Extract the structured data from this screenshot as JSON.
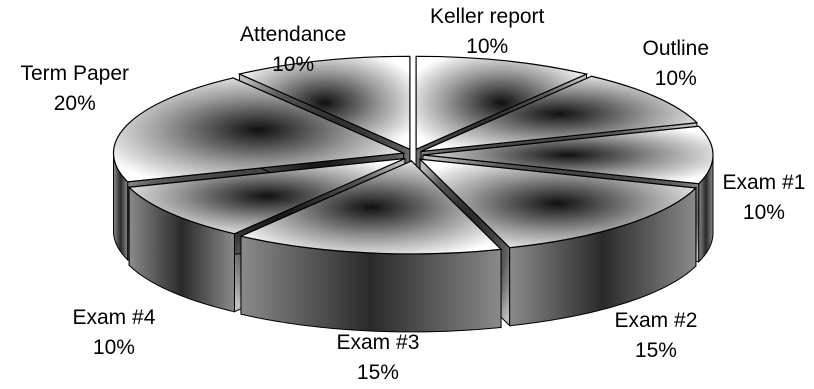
{
  "chart_data": {
    "type": "pie",
    "style": "3d-exploded",
    "title": "",
    "colors": {
      "light": "#ffffff",
      "dark": "#101010",
      "edge": "#000000",
      "shadow": "#2a2a2a"
    },
    "slices": [
      {
        "label": "Keller report",
        "value": 10,
        "value_label": "10%"
      },
      {
        "label": "Outline",
        "value": 10,
        "value_label": "10%"
      },
      {
        "label": "Exam #1",
        "value": 10,
        "value_label": "10%"
      },
      {
        "label": "Exam #2",
        "value": 15,
        "value_label": "15%"
      },
      {
        "label": "Exam #3",
        "value": 15,
        "value_label": "15%"
      },
      {
        "label": "Exam #4",
        "value": 10,
        "value_label": "10%"
      },
      {
        "label": "Term Paper",
        "value": 20,
        "value_label": "20%"
      },
      {
        "label": "Attendance",
        "value": 10,
        "value_label": "10%"
      }
    ]
  }
}
